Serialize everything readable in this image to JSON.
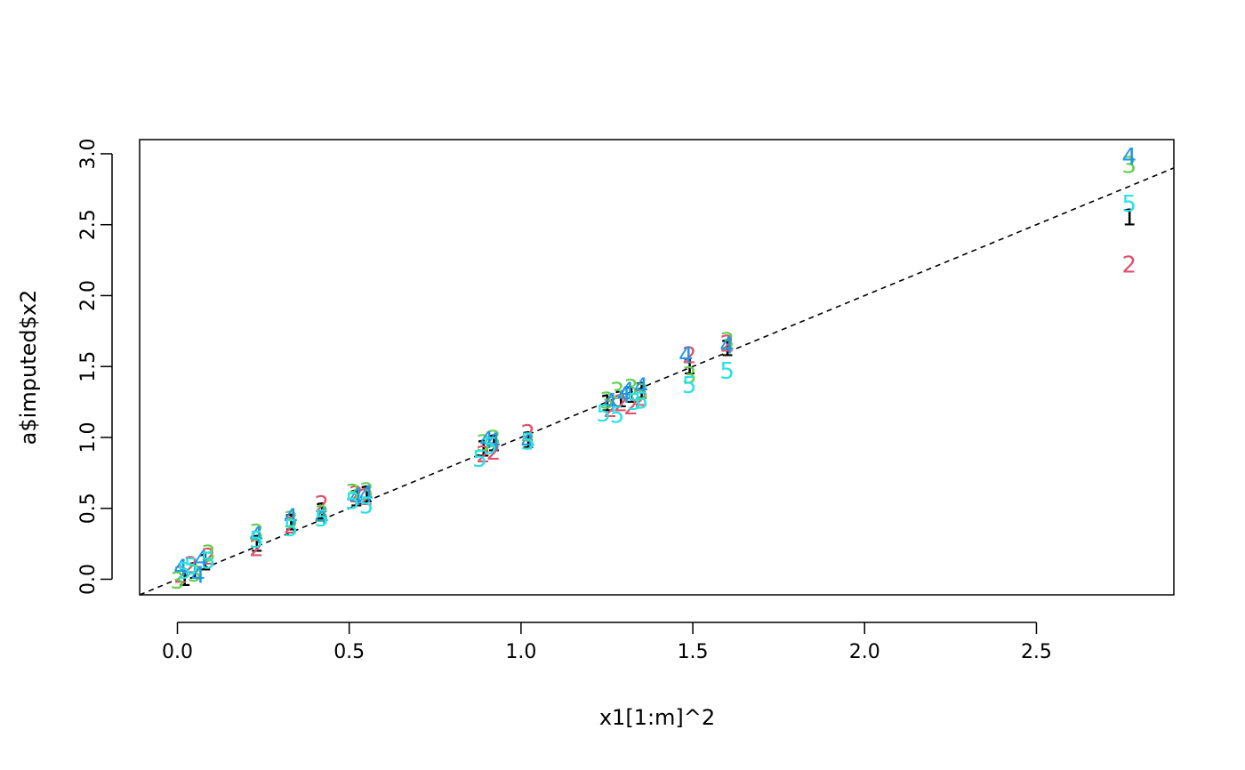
{
  "chart_data": {
    "type": "scatter",
    "title": "",
    "xlabel": "x1[1:m]^2",
    "ylabel": "a$imputed$x2",
    "xlim": [
      -0.11,
      2.9
    ],
    "ylim": [
      -0.11,
      3.1
    ],
    "x_ticks": [
      "0.0",
      "0.5",
      "1.0",
      "1.5",
      "2.0",
      "2.5"
    ],
    "y_ticks": [
      "0.0",
      "0.5",
      "1.0",
      "1.5",
      "2.0",
      "2.5",
      "3.0"
    ],
    "grid": false,
    "legend": "none",
    "reference_line": {
      "intercept": 0,
      "slope": 1,
      "style": "dashed"
    },
    "series": [
      {
        "label": "1",
        "color": "#000000",
        "points": [
          [
            0.02,
            0.01
          ],
          [
            0.05,
            0.06
          ],
          [
            0.08,
            0.12
          ],
          [
            0.23,
            0.25
          ],
          [
            0.33,
            0.4
          ],
          [
            0.42,
            0.48
          ],
          [
            0.52,
            0.57
          ],
          [
            0.55,
            0.6
          ],
          [
            0.89,
            0.92
          ],
          [
            0.92,
            0.96
          ],
          [
            1.02,
            0.98
          ],
          [
            1.25,
            1.24
          ],
          [
            1.29,
            1.27
          ],
          [
            1.32,
            1.3
          ],
          [
            1.35,
            1.33
          ],
          [
            1.49,
            1.5
          ],
          [
            1.6,
            1.63
          ],
          [
            2.77,
            2.55
          ]
        ]
      },
      {
        "label": "2",
        "color": "#DF536B",
        "points": [
          [
            0.01,
            0.03
          ],
          [
            0.04,
            0.1
          ],
          [
            0.09,
            0.16
          ],
          [
            0.23,
            0.22
          ],
          [
            0.33,
            0.38
          ],
          [
            0.42,
            0.53
          ],
          [
            0.52,
            0.6
          ],
          [
            0.55,
            0.58
          ],
          [
            0.89,
            0.88
          ],
          [
            0.92,
            0.9
          ],
          [
            1.02,
            1.03
          ],
          [
            1.26,
            1.2
          ],
          [
            1.29,
            1.24
          ],
          [
            1.32,
            1.22
          ],
          [
            1.35,
            1.28
          ],
          [
            1.49,
            1.58
          ],
          [
            1.6,
            1.66
          ],
          [
            2.77,
            2.22
          ]
        ]
      },
      {
        "label": "3",
        "color": "#61D04F",
        "points": [
          [
            0.0,
            -0.01
          ],
          [
            0.05,
            0.04
          ],
          [
            0.09,
            0.18
          ],
          [
            0.23,
            0.33
          ],
          [
            0.33,
            0.42
          ],
          [
            0.42,
            0.46
          ],
          [
            0.51,
            0.61
          ],
          [
            0.55,
            0.62
          ],
          [
            0.89,
            0.96
          ],
          [
            0.92,
            0.99
          ],
          [
            1.02,
            0.97
          ],
          [
            1.25,
            1.26
          ],
          [
            1.28,
            1.33
          ],
          [
            1.32,
            1.35
          ],
          [
            1.35,
            1.32
          ],
          [
            1.49,
            1.44
          ],
          [
            1.6,
            1.68
          ],
          [
            2.77,
            2.92
          ]
        ]
      },
      {
        "label": "4",
        "color": "#2297E6",
        "points": [
          [
            0.01,
            0.08
          ],
          [
            0.06,
            0.03
          ],
          [
            0.07,
            0.14
          ],
          [
            0.23,
            0.31
          ],
          [
            0.33,
            0.44
          ],
          [
            0.42,
            0.44
          ],
          [
            0.52,
            0.58
          ],
          [
            0.55,
            0.6
          ],
          [
            0.9,
            0.98
          ],
          [
            0.92,
            0.97
          ],
          [
            1.02,
            0.97
          ],
          [
            1.26,
            1.25
          ],
          [
            1.3,
            1.3
          ],
          [
            1.31,
            1.33
          ],
          [
            1.35,
            1.36
          ],
          [
            1.48,
            1.58
          ],
          [
            1.6,
            1.65
          ],
          [
            2.77,
            2.98
          ]
        ]
      },
      {
        "label": "5",
        "color": "#28E2E5",
        "points": [
          [
            0.02,
            0.06
          ],
          [
            0.04,
            0.09
          ],
          [
            0.09,
            0.13
          ],
          [
            0.23,
            0.28
          ],
          [
            0.33,
            0.36
          ],
          [
            0.42,
            0.43
          ],
          [
            0.51,
            0.55
          ],
          [
            0.55,
            0.52
          ],
          [
            0.88,
            0.85
          ],
          [
            0.91,
            0.94
          ],
          [
            1.02,
            0.97
          ],
          [
            1.24,
            1.17
          ],
          [
            1.28,
            1.16
          ],
          [
            1.33,
            1.25
          ],
          [
            1.35,
            1.26
          ],
          [
            1.49,
            1.37
          ],
          [
            1.6,
            1.47
          ],
          [
            2.77,
            2.65
          ]
        ]
      }
    ]
  }
}
